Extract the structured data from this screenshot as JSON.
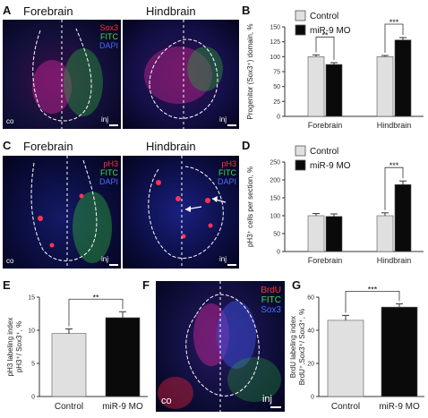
{
  "panels": {
    "A": {
      "letter": "A",
      "left_title": "Forebrain",
      "right_title": "Hindbrain",
      "channels": [
        "Sox3",
        "FITC",
        "DAPI"
      ],
      "corner_left": "co",
      "corner_right": "inj"
    },
    "C": {
      "letter": "C",
      "left_title": "Forebrain",
      "right_title": "Hindbrain",
      "channels": [
        "pH3",
        "FITC",
        "DAPI"
      ],
      "corner_left": "co",
      "corner_right": "inj"
    },
    "F": {
      "letter": "F",
      "channels": [
        "BrdU",
        "FITC",
        "Sox3"
      ],
      "corner_left": "co",
      "corner_right": "inj"
    }
  },
  "colors": {
    "control": "#e0e0e0",
    "treatment": "#0a0a0a",
    "red_channel": "#ff3333",
    "green_channel": "#44dd44",
    "blue_channel": "#4a6cff"
  },
  "chart_data": [
    {
      "id": "B",
      "letter": "B",
      "type": "bar",
      "categories": [
        "Forebrain",
        "Hindbrain"
      ],
      "series": [
        {
          "name": "Control",
          "values": [
            100,
            100
          ],
          "errors": [
            3,
            2
          ]
        },
        {
          "name": "miR-9 MO",
          "values": [
            87,
            128
          ],
          "errors": [
            3,
            4
          ]
        }
      ],
      "ylabel": "Progenitor (Sox3⁺) domain, %",
      "ylim": [
        0,
        150
      ],
      "yticks": [
        0,
        25,
        50,
        75,
        100,
        125,
        150
      ],
      "significance": [
        "**",
        "***"
      ],
      "legend": "top-left"
    },
    {
      "id": "D",
      "letter": "D",
      "type": "bar",
      "categories": [
        "Forebrain",
        "Hindbrain"
      ],
      "series": [
        {
          "name": "Control",
          "values": [
            100,
            100
          ],
          "errors": [
            6,
            8
          ]
        },
        {
          "name": "miR-9 MO",
          "values": [
            98,
            187
          ],
          "errors": [
            7,
            10
          ]
        }
      ],
      "ylabel": "pH3⁺ cells per section, %",
      "ylim": [
        0,
        250
      ],
      "yticks": [
        0,
        50,
        100,
        150,
        200,
        250
      ],
      "significance": [
        "***"
      ],
      "legend": "top-left"
    },
    {
      "id": "E",
      "letter": "E",
      "type": "bar",
      "categories": [
        "Control",
        "miR-9 MO"
      ],
      "values": [
        9.5,
        11.9
      ],
      "errors": [
        0.7,
        0.9
      ],
      "ylabel": "pH3 labeling index",
      "ylabel2": "pH3⁺/ Sox3⁺, %",
      "ylim": [
        0,
        15
      ],
      "yticks": [
        0,
        5,
        10,
        15
      ],
      "significance": [
        "**"
      ]
    },
    {
      "id": "G",
      "letter": "G",
      "type": "bar",
      "categories": [
        "Control",
        "miR-9 MO"
      ],
      "values": [
        46,
        54
      ],
      "errors": [
        3,
        2
      ],
      "ylabel": "BrdU labeling index",
      "ylabel2": "BrdU⁺,Sox3⁺/ Sox3⁺, %",
      "ylim": [
        0,
        60
      ],
      "yticks": [
        0,
        20,
        40,
        60
      ],
      "significance": [
        "***"
      ]
    }
  ]
}
